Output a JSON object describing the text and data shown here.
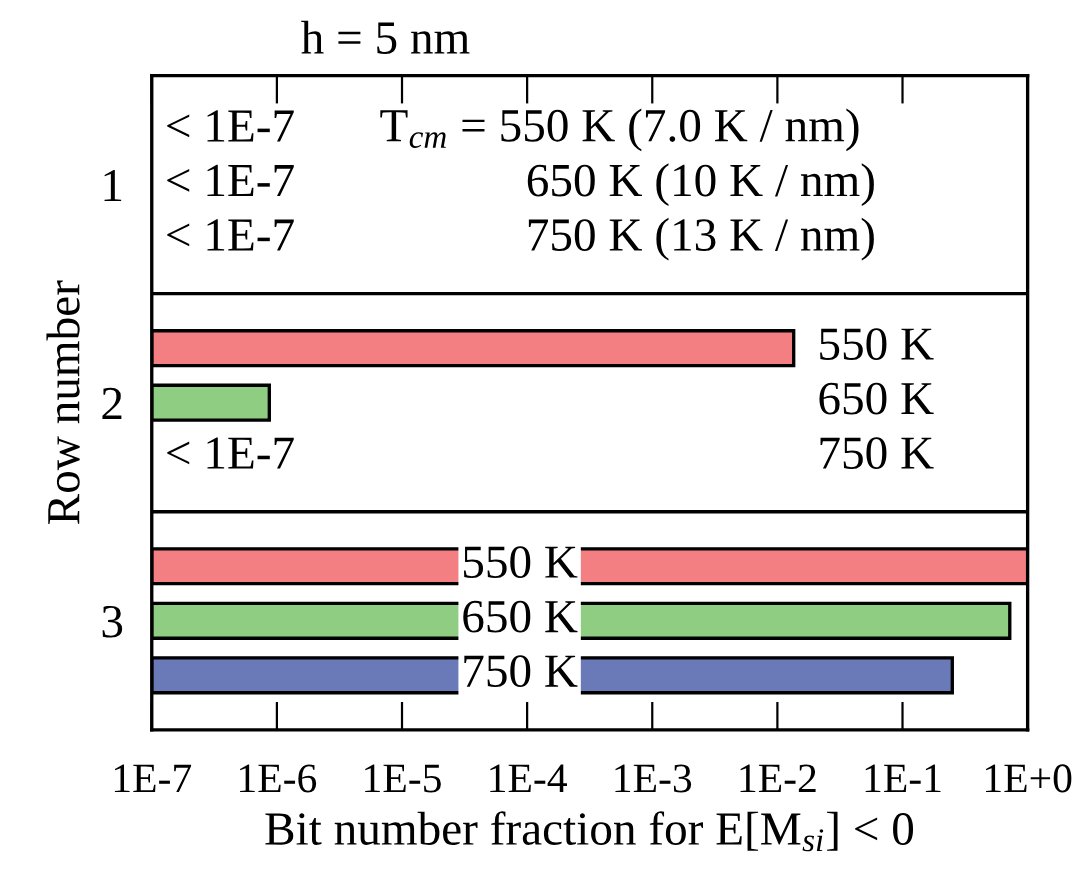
{
  "chart_data": {
    "type": "bar",
    "orientation": "horizontal",
    "title": "h = 5 nm",
    "xlabel": "Bit number fraction for E[M$_{si}$] < 0",
    "ylabel": "Row number",
    "categories": [
      "1",
      "2",
      "3"
    ],
    "series": [
      {
        "name": "550 K",
        "color": "#f47f83",
        "values": [
          null,
          0.0135,
          1.0
        ]
      },
      {
        "name": "650 K",
        "color": "#8fcd83",
        "values": [
          null,
          8.7e-07,
          0.72
        ]
      },
      {
        "name": "750 K",
        "color": "#6a7ab9",
        "values": [
          null,
          null,
          0.25
        ]
      }
    ],
    "log": "x",
    "xlim": [
      1e-07,
      1
    ],
    "xticks": [
      {
        "value": 1e-07,
        "label": "1E-7"
      },
      {
        "value": 1e-06,
        "label": "1E-6"
      },
      {
        "value": 1e-05,
        "label": "1E-5"
      },
      {
        "value": 0.0001,
        "label": "1E-4"
      },
      {
        "value": 0.001,
        "label": "1E-3"
      },
      {
        "value": 0.01,
        "label": "1E-2"
      },
      {
        "value": 0.1,
        "label": "1E-1"
      },
      {
        "value": 1,
        "label": "1E+0"
      }
    ],
    "annotations": [
      "< 1E-7",
      "< 1E-7",
      "< 1E-7",
      "T$_{cm}$ = 550 K (7.0 K / nm)",
      "650 K (10 K / nm)",
      "750 K (13 K / nm)",
      "< 1E-7"
    ],
    "grid": false,
    "legend": false
  }
}
